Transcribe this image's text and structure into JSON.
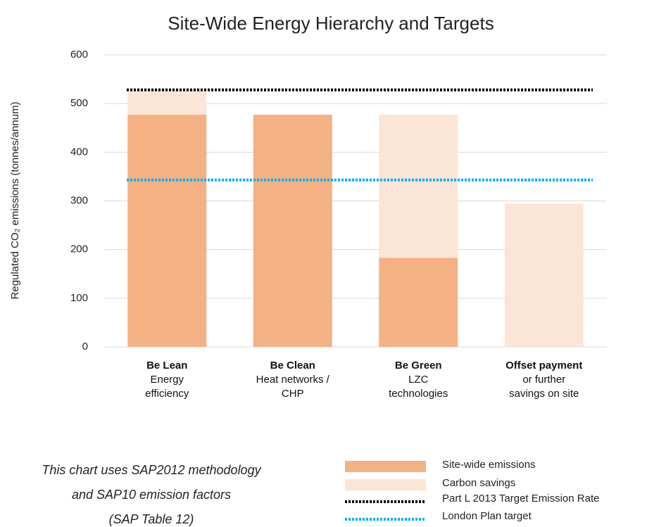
{
  "chart_data": {
    "type": "bar",
    "stacked": true,
    "title": "Site-Wide Energy Hierarchy and Targets",
    "y_label": "Regulated CO₂ emissions (tonnes/annum)",
    "categories": [
      "Be Lean",
      "Be Clean",
      "Be Green",
      "Offset payment"
    ],
    "category_descriptions": [
      "Energy\nefficiency",
      "Heat networks /\nCHP",
      "LZC\ntechnologies",
      "or further\nsavings on site"
    ],
    "series": [
      {
        "name": "Site-wide emissions",
        "color": "#f4b183",
        "values": [
          477,
          477,
          183,
          0
        ]
      },
      {
        "name": "Carbon savings",
        "color": "#fbe5d6",
        "values": [
          53,
          0,
          294,
          294
        ]
      }
    ],
    "reference_lines": [
      {
        "name": "Part L 2013 Target Emission Rate",
        "value": 528,
        "color": "#000000",
        "style": "dotted"
      },
      {
        "name": "London Plan target",
        "value": 343,
        "color": "#00b0f0",
        "style": "dotted"
      }
    ],
    "ylim": [
      0,
      600
    ],
    "yticks": [
      0,
      100,
      200,
      300,
      400,
      500,
      600
    ],
    "grid": true,
    "note": [
      "This chart uses SAP2012 methodology",
      "and SAP10 emission factors",
      "(SAP Table 12)"
    ]
  }
}
